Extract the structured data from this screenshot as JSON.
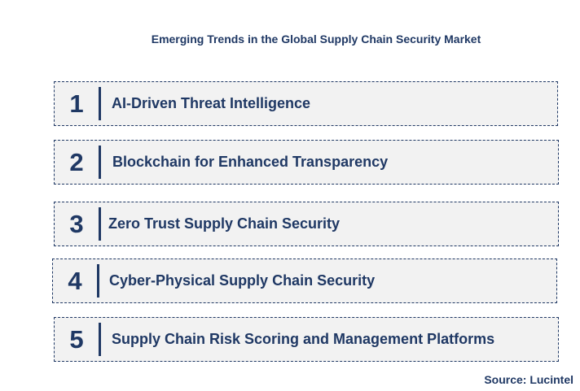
{
  "title": "Emerging Trends in the Global Supply Chain Security Market",
  "trends": [
    {
      "number": "1",
      "label": "AI-Driven Threat Intelligence"
    },
    {
      "number": "2",
      "label": "Blockchain for Enhanced Transparency"
    },
    {
      "number": "3",
      "label": "Zero Trust Supply Chain Security"
    },
    {
      "number": "4",
      "label": "Cyber-Physical Supply Chain Security"
    },
    {
      "number": "5",
      "label": "Supply Chain Risk Scoring and Management Platforms"
    }
  ],
  "source": "Source: Lucintel",
  "colors": {
    "text": "#1f3864",
    "box_fill": "#f2f2f2",
    "border": "#1f3864"
  }
}
